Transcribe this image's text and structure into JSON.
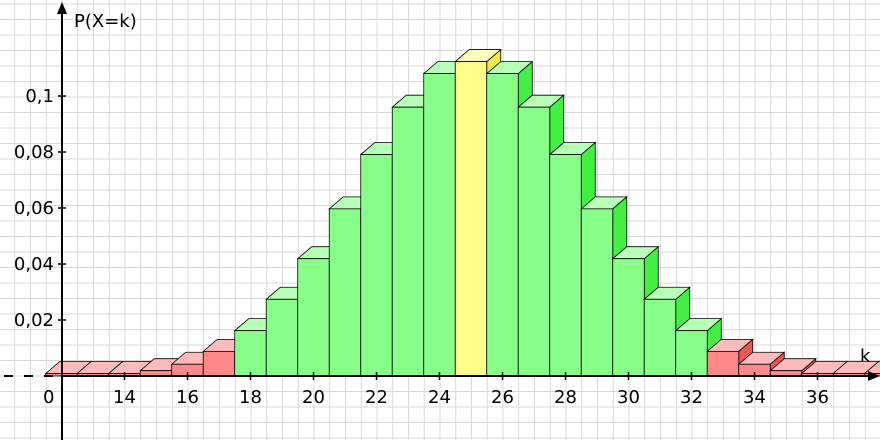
{
  "chart_data": {
    "type": "bar",
    "title": "",
    "ylabel": "P(X=k)",
    "xlabel": "k",
    "origin_label": "0",
    "x_ticks": [
      14,
      16,
      18,
      20,
      22,
      24,
      26,
      28,
      30,
      32,
      34,
      36
    ],
    "x_tick_labels": [
      "14",
      "16",
      "18",
      "20",
      "22",
      "24",
      "26",
      "28",
      "30",
      "32",
      "34",
      "36"
    ],
    "y_ticks": [
      0.02,
      0.04,
      0.06,
      0.08,
      0.1
    ],
    "y_tick_labels": [
      "0,02",
      "0,04",
      "0,06",
      "0,08",
      "0,1"
    ],
    "xlim": [
      10.2,
      38.2
    ],
    "ylim": [
      0,
      0.118
    ],
    "grid": true,
    "bars": [
      {
        "k": 12,
        "p": 0.0009,
        "region": "tail"
      },
      {
        "k": 13,
        "p": 0.0009,
        "region": "tail"
      },
      {
        "k": 14,
        "p": 0.0009,
        "region": "tail"
      },
      {
        "k": 15,
        "p": 0.0019,
        "region": "tail"
      },
      {
        "k": 16,
        "p": 0.0042,
        "region": "tail"
      },
      {
        "k": 17,
        "p": 0.0088,
        "region": "tail"
      },
      {
        "k": 18,
        "p": 0.0162,
        "region": "center"
      },
      {
        "k": 19,
        "p": 0.0274,
        "region": "center"
      },
      {
        "k": 20,
        "p": 0.0419,
        "region": "center"
      },
      {
        "k": 21,
        "p": 0.0597,
        "region": "center"
      },
      {
        "k": 22,
        "p": 0.0791,
        "region": "center"
      },
      {
        "k": 23,
        "p": 0.096,
        "region": "center"
      },
      {
        "k": 24,
        "p": 0.108,
        "region": "center"
      },
      {
        "k": 25,
        "p": 0.1123,
        "region": "mode"
      },
      {
        "k": 26,
        "p": 0.108,
        "region": "center"
      },
      {
        "k": 27,
        "p": 0.096,
        "region": "center"
      },
      {
        "k": 28,
        "p": 0.0791,
        "region": "center"
      },
      {
        "k": 29,
        "p": 0.0597,
        "region": "center"
      },
      {
        "k": 30,
        "p": 0.0419,
        "region": "center"
      },
      {
        "k": 31,
        "p": 0.0274,
        "region": "center"
      },
      {
        "k": 32,
        "p": 0.0162,
        "region": "center"
      },
      {
        "k": 33,
        "p": 0.0088,
        "region": "tail"
      },
      {
        "k": 34,
        "p": 0.0042,
        "region": "tail"
      },
      {
        "k": 35,
        "p": 0.0019,
        "region": "tail"
      },
      {
        "k": 36,
        "p": 0.0009,
        "region": "tail"
      },
      {
        "k": 37,
        "p": 0.0009,
        "region": "tail"
      },
      {
        "k": 38,
        "p": 0.0009,
        "region": "tail"
      }
    ],
    "colors": {
      "center": {
        "front": "#88ff88",
        "side": "#44ee44",
        "top": "#b8ffb8"
      },
      "mode": {
        "front": "#ffff88",
        "side": "#eeee44",
        "top": "#ffffbb"
      },
      "tail": {
        "front": "#ff8888",
        "side": "#ee5555",
        "top": "#ffbbbb"
      },
      "grid": "#d9d9d9",
      "axis": "#000000",
      "bar_stroke": "#000000"
    }
  }
}
